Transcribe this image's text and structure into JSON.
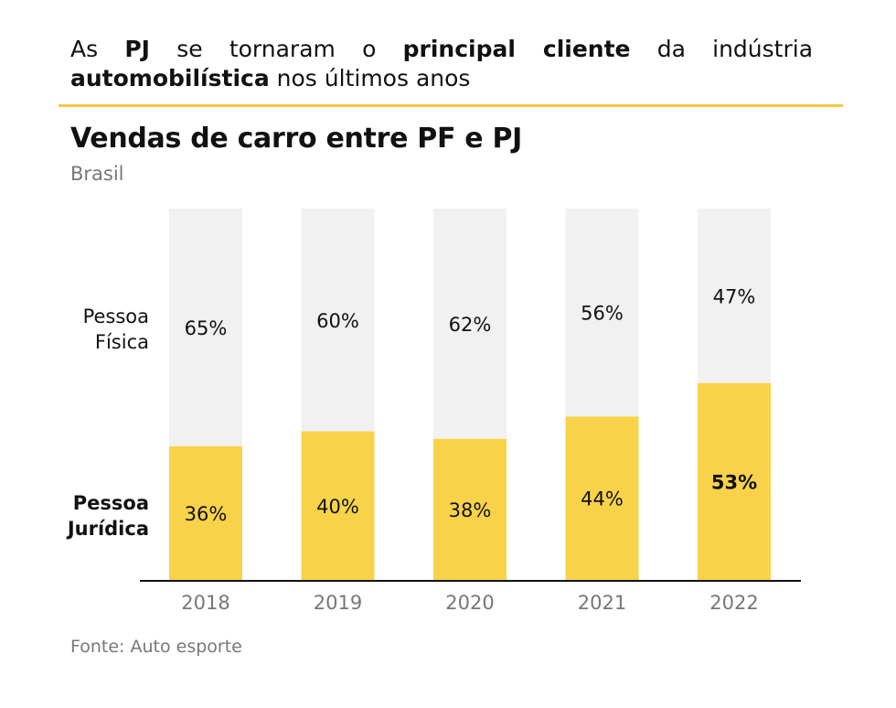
{
  "headline": {
    "w1": "As",
    "w2": "PJ",
    "w3": "se tornaram o",
    "w4": "principal cliente",
    "w5": "da indústria",
    "w6": "automobilística",
    "w7": "nos últimos anos"
  },
  "colors": {
    "accent": "#f5c842",
    "pj_bar": "#f8d34a",
    "pf_bar": "#f1f1f1",
    "axis": "#111111",
    "muted": "#777777"
  },
  "chart_data": {
    "type": "bar",
    "stacked": true,
    "title": "Vendas de carro entre PF e PJ",
    "subtitle": "Brasil",
    "categories": [
      "2018",
      "2019",
      "2020",
      "2021",
      "2022"
    ],
    "series": [
      {
        "name": "Pessoa Jurídica",
        "name_lines": [
          "Pessoa",
          "Jurídica"
        ],
        "values": [
          36,
          40,
          38,
          44,
          53
        ],
        "labels": [
          "36%",
          "40%",
          "38%",
          "44%",
          "53%"
        ]
      },
      {
        "name": "Pessoa Física",
        "name_lines": [
          "Pessoa",
          "Física"
        ],
        "values": [
          65,
          60,
          62,
          56,
          47
        ],
        "labels": [
          "65%",
          "60%",
          "62%",
          "56%",
          "47%"
        ]
      }
    ],
    "highlight_label_index": 4,
    "ylim": [
      0,
      100
    ],
    "source": "Fonte: Auto esporte"
  }
}
